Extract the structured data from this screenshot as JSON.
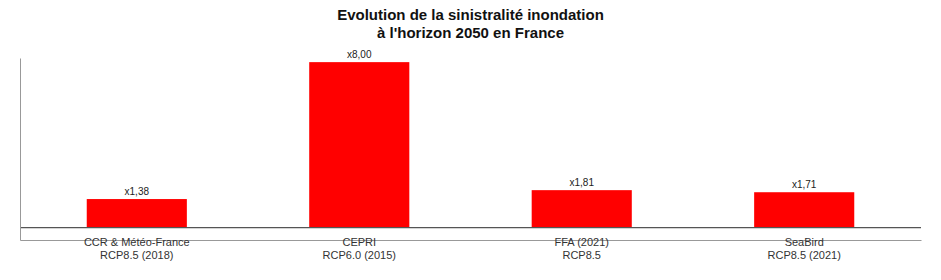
{
  "chart_data": {
    "type": "bar",
    "title": "Evolution de la sinistralité inondation\nà l'horizon 2050 en France",
    "categories": [
      "CCR & Météo-France\nRCP8.5 (2018)",
      "CEPRI\nRCP6.0 (2015)",
      "FFA (2021)\nRCP8.5",
      "SeaBird\nRCP8.5 (2021)"
    ],
    "values": [
      1.38,
      8.0,
      1.81,
      1.71
    ],
    "value_labels": [
      "x1,38",
      "x8,00",
      "x1,81",
      "x1,71"
    ],
    "data_labels": true,
    "color": "#ff0000",
    "ylim": [
      -0.6,
      8.2
    ],
    "tick_labels": "x",
    "grid": false
  }
}
